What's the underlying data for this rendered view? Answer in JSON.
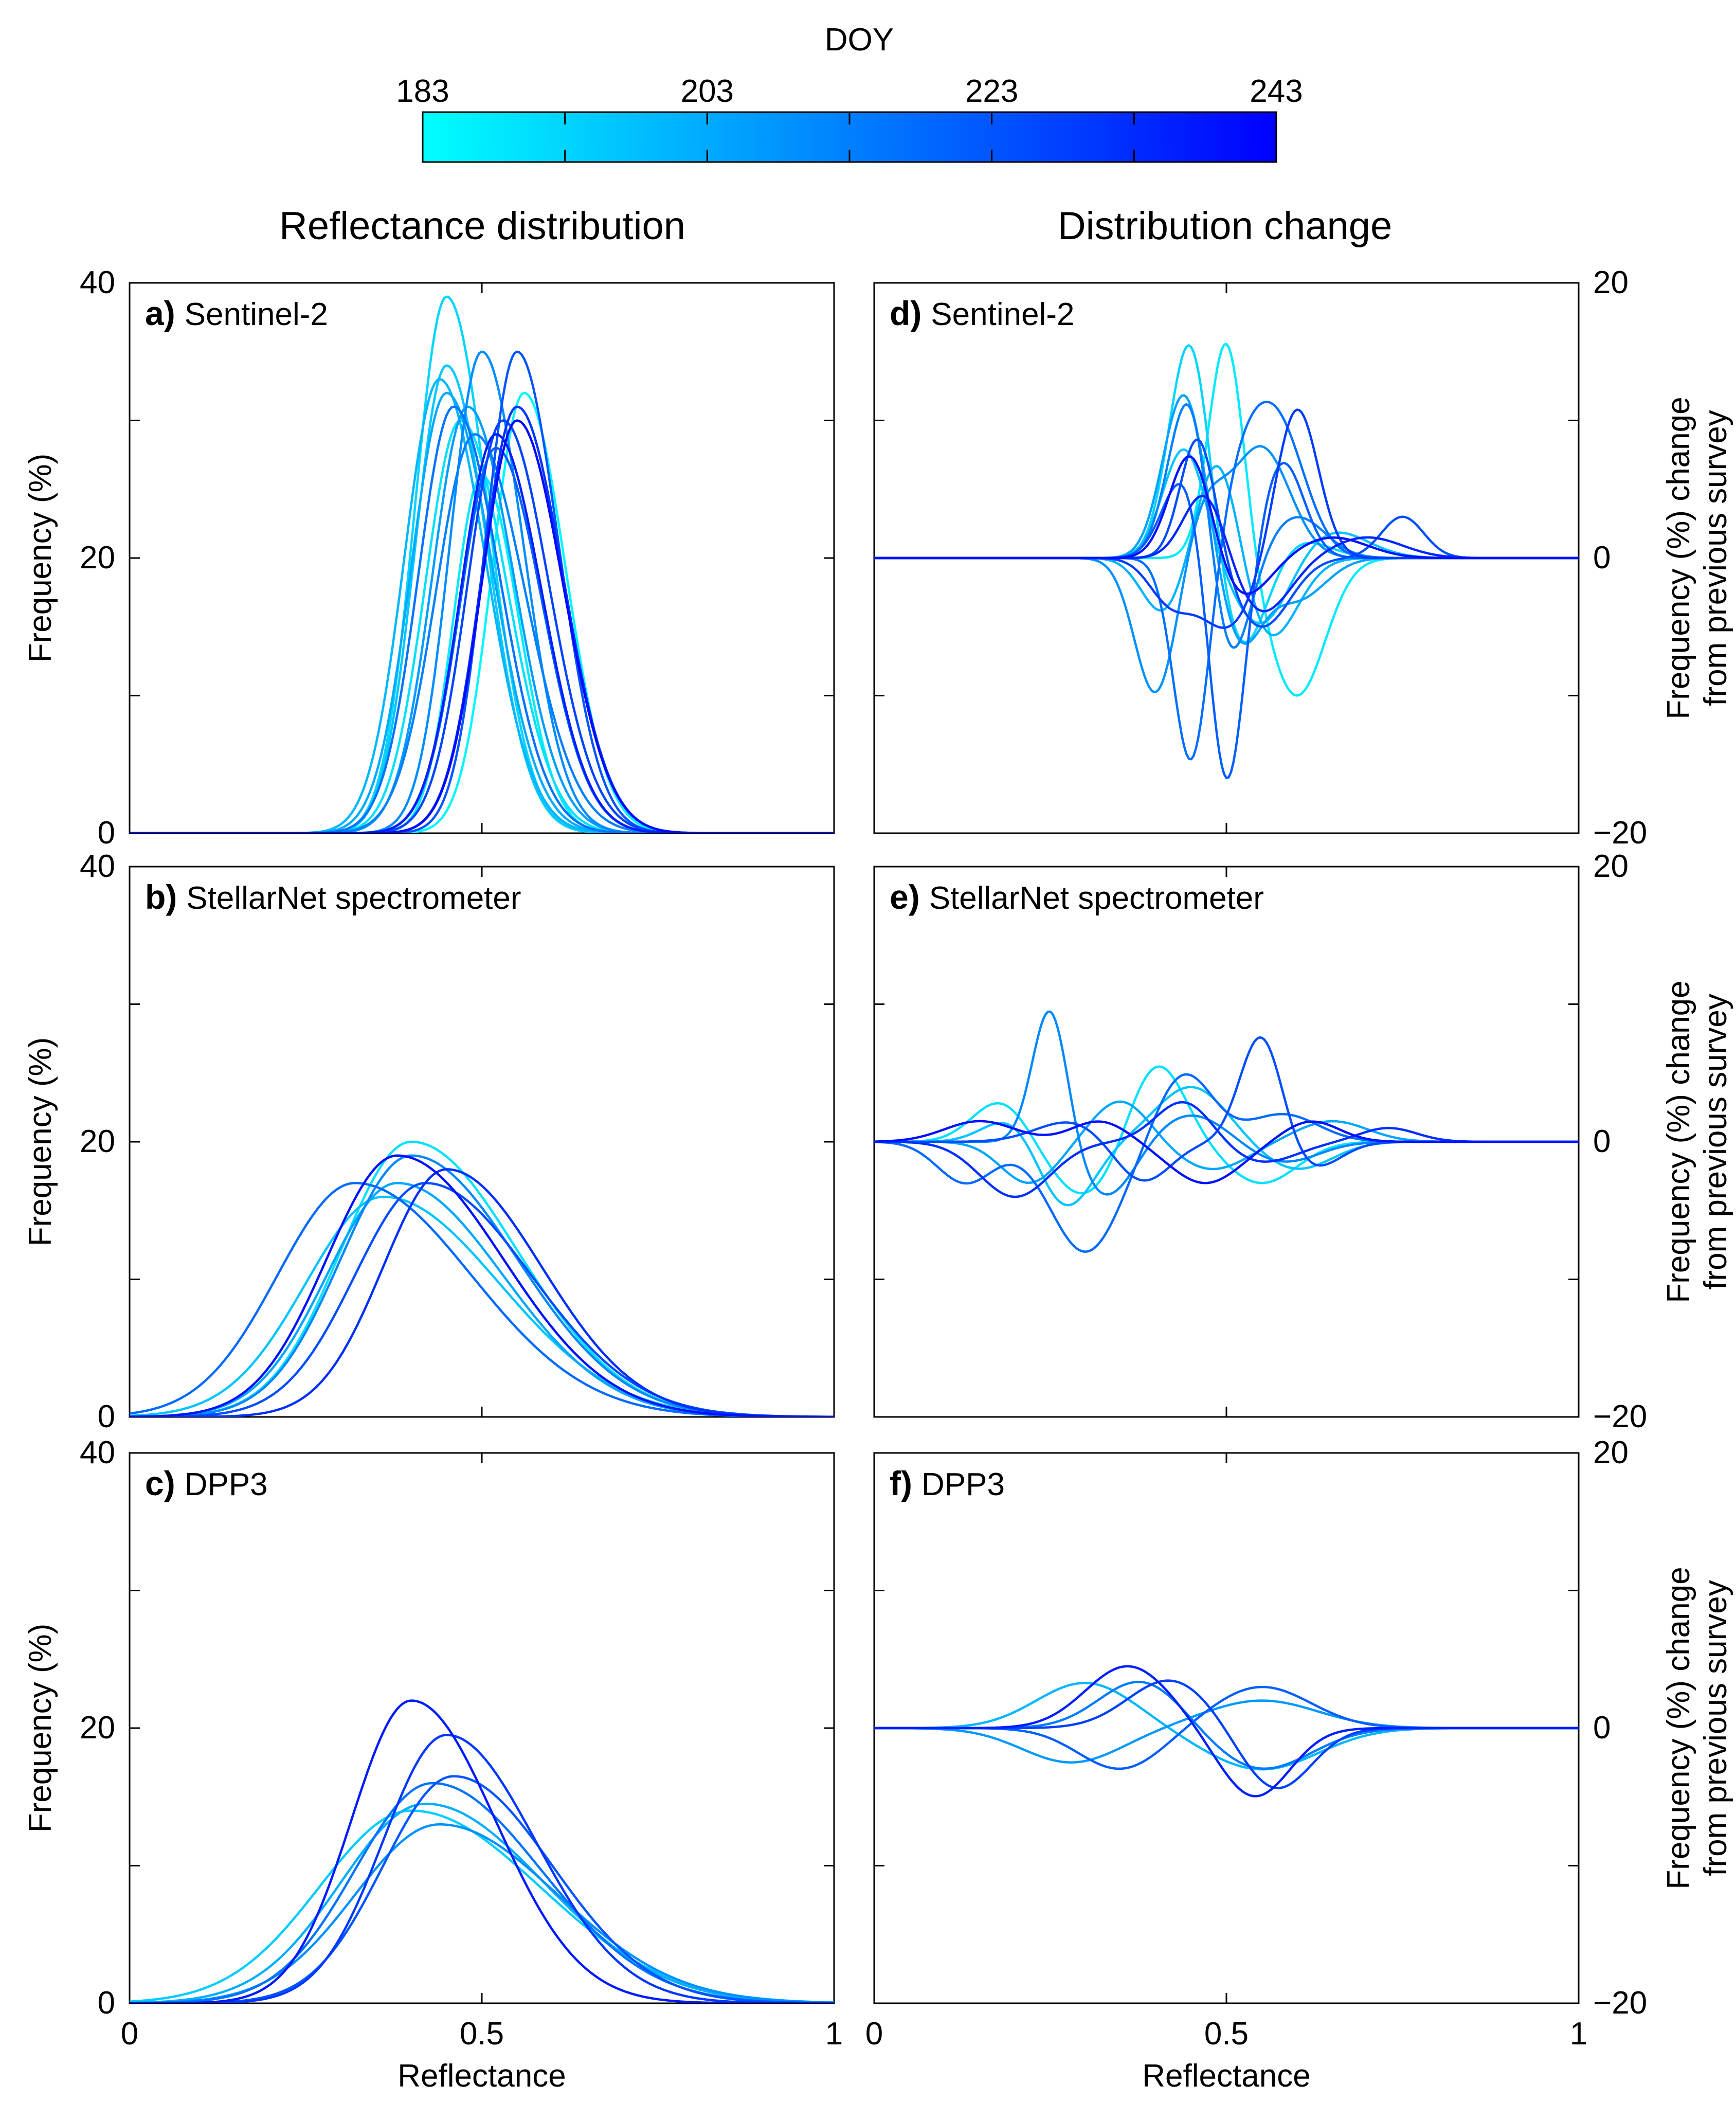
{
  "colorbar": {
    "title": "DOY",
    "ticks": [
      183,
      203,
      223,
      243
    ],
    "range": [
      183,
      243
    ],
    "color_start": "#00ffff",
    "color_end": "#0000ff"
  },
  "column_titles": {
    "left": "Reflectance distribution",
    "right": "Distribution change"
  },
  "chart_data": [
    {
      "type": "line",
      "id": "a",
      "letter": "a)",
      "title": "Sentinel-2",
      "xlabel": "",
      "ylabel": "Frequency (%)",
      "xlim": [
        0,
        1
      ],
      "ylim": [
        0,
        40
      ],
      "yticks": [
        0,
        20,
        40
      ],
      "xticks": [],
      "series": [
        {
          "doy": 185,
          "peak_x": 0.56,
          "peak_y": 32,
          "sigma": 0.045,
          "skew": 0.3
        },
        {
          "doy": 188,
          "peak_x": 0.5,
          "peak_y": 26,
          "sigma": 0.04,
          "skew": 0.3
        },
        {
          "doy": 190,
          "peak_x": 0.47,
          "peak_y": 30,
          "sigma": 0.05,
          "skew": 0.3
        },
        {
          "doy": 193,
          "peak_x": 0.45,
          "peak_y": 39,
          "sigma": 0.045,
          "skew": 0.3
        },
        {
          "doy": 196,
          "peak_x": 0.45,
          "peak_y": 34,
          "sigma": 0.045,
          "skew": 0.3
        },
        {
          "doy": 200,
          "peak_x": 0.44,
          "peak_y": 33,
          "sigma": 0.05,
          "skew": 0.3
        },
        {
          "doy": 203,
          "peak_x": 0.45,
          "peak_y": 32,
          "sigma": 0.05,
          "skew": 0.3
        },
        {
          "doy": 206,
          "peak_x": 0.48,
          "peak_y": 31,
          "sigma": 0.05,
          "skew": 0.3
        },
        {
          "doy": 210,
          "peak_x": 0.5,
          "peak_y": 35,
          "sigma": 0.045,
          "skew": 0.3
        },
        {
          "doy": 213,
          "peak_x": 0.49,
          "peak_y": 29,
          "sigma": 0.055,
          "skew": 0.3
        },
        {
          "doy": 216,
          "peak_x": 0.46,
          "peak_y": 31,
          "sigma": 0.05,
          "skew": 0.3
        },
        {
          "doy": 220,
          "peak_x": 0.52,
          "peak_y": 28,
          "sigma": 0.05,
          "skew": 0.3
        },
        {
          "doy": 223,
          "peak_x": 0.55,
          "peak_y": 35,
          "sigma": 0.045,
          "skew": 0.3
        },
        {
          "doy": 227,
          "peak_x": 0.53,
          "peak_y": 30,
          "sigma": 0.05,
          "skew": 0.3
        },
        {
          "doy": 231,
          "peak_x": 0.55,
          "peak_y": 31,
          "sigma": 0.05,
          "skew": 0.3
        },
        {
          "doy": 236,
          "peak_x": 0.52,
          "peak_y": 29,
          "sigma": 0.05,
          "skew": 0.3
        },
        {
          "doy": 241,
          "peak_x": 0.55,
          "peak_y": 30,
          "sigma": 0.05,
          "skew": 0.3
        }
      ]
    },
    {
      "type": "line",
      "id": "b",
      "letter": "b)",
      "title": "StellarNet spectrometer",
      "xlabel": "",
      "ylabel": "Frequency (%)",
      "xlim": [
        0,
        1
      ],
      "ylim": [
        0,
        40
      ],
      "yticks": [
        0,
        20,
        40
      ],
      "xticks": [],
      "series": [
        {
          "doy": 190,
          "peak_x": 0.4,
          "peak_y": 20,
          "sigma": 0.1,
          "skew": 0.5
        },
        {
          "doy": 197,
          "peak_x": 0.36,
          "peak_y": 16,
          "sigma": 0.11,
          "skew": 0.5
        },
        {
          "doy": 204,
          "peak_x": 0.38,
          "peak_y": 17,
          "sigma": 0.1,
          "skew": 0.5
        },
        {
          "doy": 211,
          "peak_x": 0.4,
          "peak_y": 19,
          "sigma": 0.1,
          "skew": 0.5
        },
        {
          "doy": 218,
          "peak_x": 0.32,
          "peak_y": 17,
          "sigma": 0.11,
          "skew": 0.5
        },
        {
          "doy": 225,
          "peak_x": 0.42,
          "peak_y": 17,
          "sigma": 0.1,
          "skew": 0.5
        },
        {
          "doy": 232,
          "peak_x": 0.45,
          "peak_y": 18,
          "sigma": 0.09,
          "skew": 0.5
        },
        {
          "doy": 239,
          "peak_x": 0.38,
          "peak_y": 19,
          "sigma": 0.1,
          "skew": 0.5
        }
      ]
    },
    {
      "type": "line",
      "id": "c",
      "letter": "c)",
      "title": "DPP3",
      "xlabel": "Reflectance",
      "ylabel": "Frequency (%)",
      "xlim": [
        0,
        1
      ],
      "ylim": [
        0,
        40
      ],
      "yticks": [
        0,
        20,
        40
      ],
      "xticks": [
        0,
        0.5,
        1
      ],
      "series": [
        {
          "doy": 195,
          "peak_x": 0.4,
          "peak_y": 14,
          "sigma": 0.13,
          "skew": 0.4
        },
        {
          "doy": 202,
          "peak_x": 0.42,
          "peak_y": 14.5,
          "sigma": 0.12,
          "skew": 0.4
        },
        {
          "doy": 209,
          "peak_x": 0.44,
          "peak_y": 13,
          "sigma": 0.12,
          "skew": 0.4
        },
        {
          "doy": 216,
          "peak_x": 0.43,
          "peak_y": 16,
          "sigma": 0.11,
          "skew": 0.4
        },
        {
          "doy": 223,
          "peak_x": 0.46,
          "peak_y": 16.5,
          "sigma": 0.1,
          "skew": 0.4
        },
        {
          "doy": 230,
          "peak_x": 0.45,
          "peak_y": 19.5,
          "sigma": 0.09,
          "skew": 0.4
        },
        {
          "doy": 237,
          "peak_x": 0.4,
          "peak_y": 22,
          "sigma": 0.085,
          "skew": 0.4
        }
      ]
    },
    {
      "type": "line",
      "id": "d",
      "letter": "d)",
      "title": "Sentinel-2",
      "xlabel": "",
      "ylabel": "Frequency (%) change\nfrom previous survey",
      "xlim": [
        0,
        1
      ],
      "ylim": [
        -20,
        20
      ],
      "yticks": [
        -20,
        0,
        20
      ],
      "xticks": [],
      "series": [
        {
          "doy": 188,
          "components": [
            [
              0.5,
              16,
              0.025
            ],
            [
              0.6,
              -10,
              0.04
            ]
          ]
        },
        {
          "doy": 193,
          "components": [
            [
              0.45,
              17,
              0.03
            ],
            [
              0.52,
              -8,
              0.04
            ],
            [
              0.58,
              2,
              0.05
            ]
          ]
        },
        {
          "doy": 197,
          "components": [
            [
              0.44,
              8,
              0.03
            ],
            [
              0.55,
              -5,
              0.04
            ],
            [
              0.65,
              2,
              0.05
            ]
          ]
        },
        {
          "doy": 201,
          "components": [
            [
              0.41,
              -4,
              0.03
            ],
            [
              0.49,
              8,
              0.03
            ],
            [
              0.56,
              -6,
              0.04
            ]
          ]
        },
        {
          "doy": 205,
          "components": [
            [
              0.44,
              12,
              0.03
            ],
            [
              0.52,
              -6,
              0.03
            ],
            [
              0.6,
              -3,
              0.04
            ]
          ]
        },
        {
          "doy": 209,
          "components": [
            [
              0.4,
              -10,
              0.03
            ],
            [
              0.47,
              4,
              0.03
            ],
            [
              0.55,
              8,
              0.04
            ]
          ]
        },
        {
          "doy": 213,
          "components": [
            [
              0.45,
              13,
              0.03
            ],
            [
              0.5,
              -9,
              0.03
            ],
            [
              0.6,
              3,
              0.04
            ]
          ]
        },
        {
          "doy": 217,
          "components": [
            [
              0.45,
              -15,
              0.025
            ],
            [
              0.52,
              4,
              0.03
            ],
            [
              0.57,
              10,
              0.04
            ]
          ]
        },
        {
          "doy": 221,
          "components": [
            [
              0.44,
              6,
              0.03
            ],
            [
              0.5,
              -17,
              0.025
            ],
            [
              0.58,
              7,
              0.03
            ]
          ]
        },
        {
          "doy": 225,
          "components": [
            [
              0.46,
              9,
              0.025
            ],
            [
              0.55,
              -5,
              0.04
            ],
            [
              0.75,
              3,
              0.03
            ]
          ]
        },
        {
          "doy": 229,
          "components": [
            [
              0.42,
              -3,
              0.03
            ],
            [
              0.5,
              -5,
              0.04
            ],
            [
              0.6,
              11,
              0.03
            ]
          ]
        },
        {
          "doy": 234,
          "components": [
            [
              0.47,
              5,
              0.03
            ],
            [
              0.55,
              -4,
              0.04
            ],
            [
              0.7,
              1.5,
              0.05
            ]
          ]
        },
        {
          "doy": 239,
          "components": [
            [
              0.45,
              8,
              0.03
            ],
            [
              0.52,
              -3,
              0.04
            ],
            [
              0.65,
              1.5,
              0.05
            ]
          ]
        }
      ]
    },
    {
      "type": "line",
      "id": "e",
      "letter": "e)",
      "title": "StellarNet spectrometer",
      "xlabel": "",
      "ylabel": "Frequency (%) change\nfrom previous survey",
      "xlim": [
        0,
        1
      ],
      "ylim": [
        -20,
        20
      ],
      "yticks": [
        -20,
        0,
        20
      ],
      "xticks": [],
      "series": [
        {
          "doy": 190,
          "components": [
            [
              0.18,
              3,
              0.04
            ],
            [
              0.3,
              -4,
              0.05
            ],
            [
              0.4,
              6,
              0.04
            ],
            [
              0.55,
              -3,
              0.05
            ]
          ]
        },
        {
          "doy": 197,
          "components": [
            [
              0.2,
              2,
              0.04
            ],
            [
              0.27,
              -5,
              0.04
            ],
            [
              0.45,
              4,
              0.05
            ],
            [
              0.6,
              -2,
              0.05
            ]
          ]
        },
        {
          "doy": 204,
          "components": [
            [
              0.22,
              -3,
              0.04
            ],
            [
              0.35,
              3,
              0.04
            ],
            [
              0.48,
              -2,
              0.05
            ],
            [
              0.65,
              1.5,
              0.05
            ]
          ]
        },
        {
          "doy": 211,
          "components": [
            [
              0.25,
              10,
              0.025
            ],
            [
              0.33,
              -4,
              0.04
            ],
            [
              0.45,
              2,
              0.05
            ],
            [
              0.58,
              -1.5,
              0.05
            ]
          ]
        },
        {
          "doy": 218,
          "components": [
            [
              0.13,
              -3,
              0.04
            ],
            [
              0.3,
              -8,
              0.05
            ],
            [
              0.44,
              5,
              0.04
            ],
            [
              0.58,
              2,
              0.05
            ]
          ]
        },
        {
          "doy": 225,
          "components": [
            [
              0.28,
              1.5,
              0.05
            ],
            [
              0.38,
              -3,
              0.04
            ],
            [
              0.55,
              8,
              0.03
            ],
            [
              0.62,
              -2,
              0.04
            ]
          ]
        },
        {
          "doy": 232,
          "components": [
            [
              0.2,
              -4,
              0.05
            ],
            [
              0.44,
              3,
              0.04
            ],
            [
              0.55,
              -1.5,
              0.05
            ],
            [
              0.73,
              1,
              0.04
            ]
          ]
        },
        {
          "doy": 239,
          "components": [
            [
              0.15,
              1.5,
              0.05
            ],
            [
              0.32,
              1.5,
              0.04
            ],
            [
              0.47,
              -3,
              0.05
            ],
            [
              0.62,
              1.5,
              0.04
            ]
          ]
        }
      ]
    },
    {
      "type": "line",
      "id": "f",
      "letter": "f)",
      "title": "DPP3",
      "xlabel": "Reflectance",
      "ylabel": "Frequency (%) change\nfrom previous survey",
      "xlim": [
        0,
        1
      ],
      "ylim": [
        -20,
        20
      ],
      "yticks": [
        -20,
        0,
        20
      ],
      "xticks": [
        0,
        0.5,
        1
      ],
      "series": [
        {
          "doy": 200,
          "components": [
            [
              0.3,
              3.3,
              0.07
            ],
            [
              0.55,
              -3,
              0.08
            ]
          ]
        },
        {
          "doy": 207,
          "components": [
            [
              0.28,
              -2.5,
              0.07
            ],
            [
              0.55,
              2,
              0.08
            ]
          ]
        },
        {
          "doy": 214,
          "components": [
            [
              0.38,
              3.5,
              0.06
            ],
            [
              0.55,
              -3,
              0.07
            ]
          ]
        },
        {
          "doy": 221,
          "components": [
            [
              0.35,
              -3,
              0.06
            ],
            [
              0.55,
              3,
              0.07
            ]
          ]
        },
        {
          "doy": 228,
          "components": [
            [
              0.42,
              3.5,
              0.06
            ],
            [
              0.57,
              -4.5,
              0.05
            ]
          ]
        },
        {
          "doy": 236,
          "components": [
            [
              0.36,
              4.5,
              0.06
            ],
            [
              0.54,
              -5,
              0.05
            ]
          ]
        }
      ]
    }
  ]
}
